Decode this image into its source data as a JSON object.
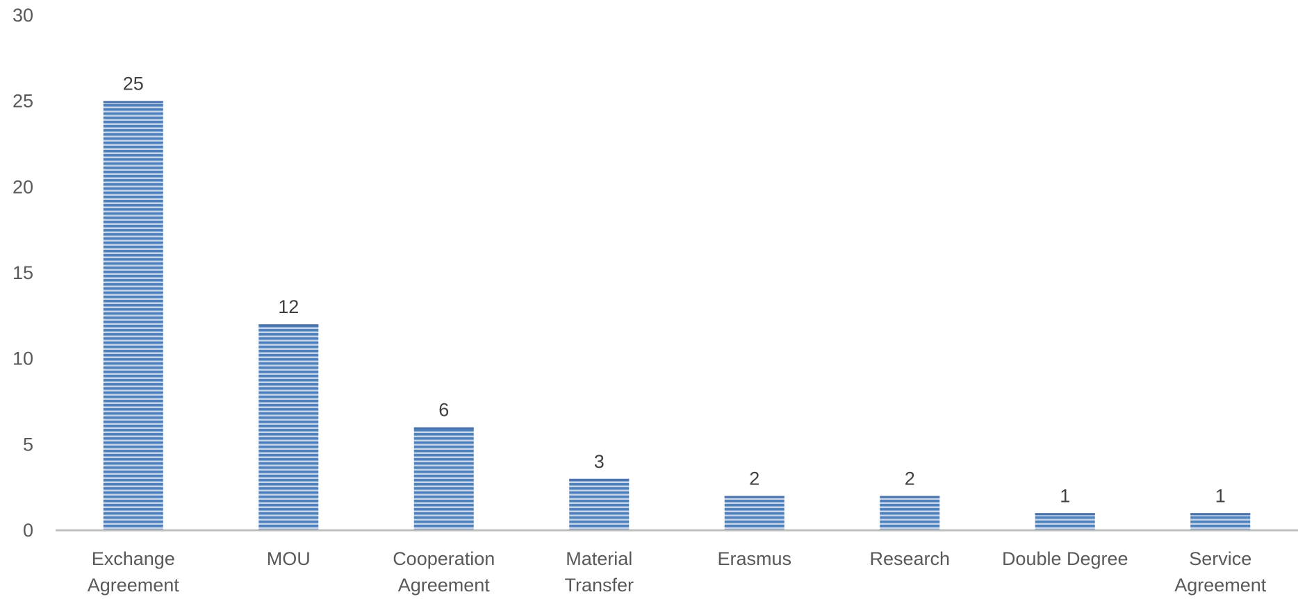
{
  "chart_data": {
    "type": "bar",
    "categories": [
      [
        "Exchange",
        "Agreement"
      ],
      [
        "MOU"
      ],
      [
        "Cooperation",
        "Agreement"
      ],
      [
        "Material",
        "Transfer"
      ],
      [
        "Erasmus"
      ],
      [
        "Research"
      ],
      [
        "Double Degree"
      ],
      [
        "Service",
        "Agreement"
      ]
    ],
    "values": [
      25,
      12,
      6,
      3,
      2,
      2,
      1,
      1
    ],
    "data_labels": [
      "25",
      "12",
      "6",
      "3",
      "2",
      "2",
      "1",
      "1"
    ],
    "y_ticks": [
      "0",
      "5",
      "10",
      "15",
      "20",
      "25",
      "30"
    ],
    "ylim": [
      0,
      30
    ],
    "title": "",
    "xlabel": "",
    "ylabel": "",
    "grid": false,
    "legend": "none",
    "colors": {
      "bar": "#4f81bd",
      "bar_stripe": "#ffffff",
      "axis": "#bfbfbf"
    }
  }
}
